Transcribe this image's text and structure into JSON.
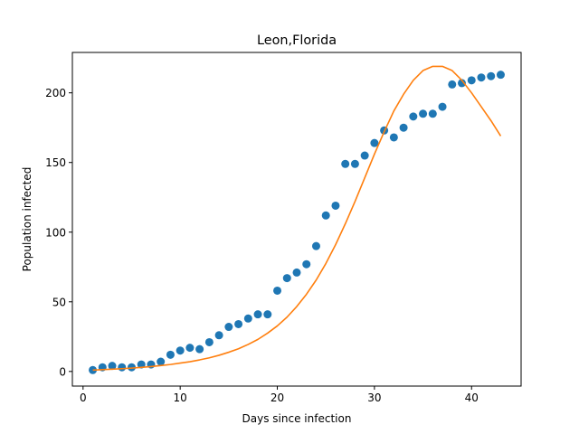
{
  "chart_data": {
    "type": "scatter",
    "title": "Leon,Florida",
    "xlabel": "Days since infection",
    "ylabel": "Population infected",
    "xlim": [
      -1.1,
      45.1
    ],
    "ylim": [
      -10.5,
      229
    ],
    "xticks": [
      0,
      10,
      20,
      30,
      40
    ],
    "yticks": [
      0,
      50,
      100,
      150,
      200
    ],
    "grid": false,
    "series": [
      {
        "kind": "scatter",
        "color": "#1f77b4",
        "x": [
          1,
          2,
          3,
          4,
          5,
          6,
          7,
          8,
          9,
          10,
          11,
          12,
          13,
          14,
          15,
          16,
          17,
          18,
          19,
          20,
          21,
          22,
          23,
          24,
          25,
          26,
          27,
          28,
          29,
          30,
          31,
          32,
          33,
          34,
          35,
          36,
          37,
          38,
          39,
          40,
          41,
          42,
          43
        ],
        "y": [
          1,
          3,
          4,
          3,
          3,
          5,
          5,
          7,
          12,
          15,
          17,
          16,
          21,
          26,
          32,
          34,
          38,
          41,
          41,
          58,
          67,
          71,
          77,
          90,
          112,
          119,
          149,
          149,
          155,
          164,
          173,
          168,
          175,
          183,
          185,
          185,
          190,
          206,
          207,
          209,
          211,
          212,
          213
        ]
      },
      {
        "kind": "line",
        "color": "#ff7f0e",
        "x": [
          1,
          2,
          3,
          4,
          5,
          6,
          7,
          8,
          9,
          10,
          11,
          12,
          13,
          14,
          15,
          16,
          17,
          18,
          19,
          20,
          21,
          22,
          23,
          24,
          25,
          26,
          27,
          28,
          29,
          30,
          31,
          32,
          33,
          34,
          35,
          36,
          37,
          38,
          39,
          40,
          41,
          42,
          43
        ],
        "y": [
          1,
          1.3,
          1.6,
          2,
          2.4,
          2.9,
          3.5,
          4.2,
          5,
          6,
          7,
          8.3,
          9.8,
          11.6,
          13.8,
          16.3,
          19.4,
          23,
          27.5,
          32.7,
          39,
          46.6,
          55.4,
          65.6,
          77.5,
          91,
          106,
          122,
          139,
          156,
          172,
          187,
          199,
          209,
          216,
          219,
          219,
          216,
          209,
          200,
          190,
          180,
          169
        ]
      }
    ]
  }
}
